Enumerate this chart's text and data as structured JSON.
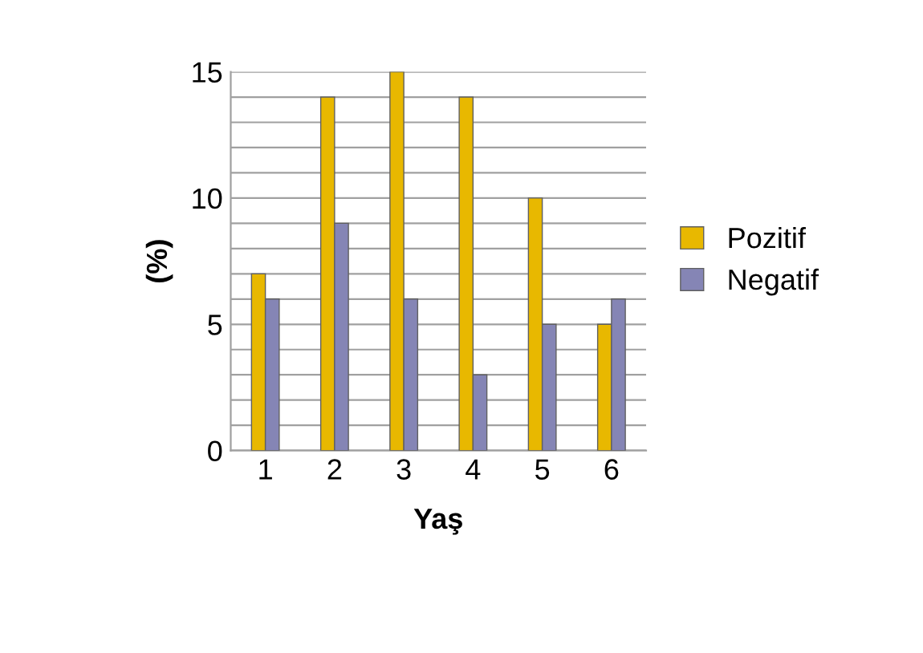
{
  "chart_data": {
    "type": "bar",
    "xlabel": "Yaş",
    "ylabel": "(%)",
    "categories": [
      "1",
      "2",
      "3",
      "4",
      "5",
      "6"
    ],
    "series": [
      {
        "name": "Pozitif",
        "color": "#e8b800",
        "values": [
          7,
          14,
          15,
          14,
          10,
          5
        ]
      },
      {
        "name": "Negatif",
        "color": "#8585b5",
        "values": [
          6,
          9,
          6,
          3,
          5,
          6
        ]
      }
    ],
    "ylim": [
      0,
      15
    ],
    "yticks": [
      0,
      {
        "value": 1,
        "label": null
      },
      {
        "value": 2,
        "label": null
      },
      {
        "value": 3,
        "label": null
      },
      {
        "value": 4,
        "label": null
      },
      5,
      {
        "value": 6,
        "label": null
      },
      {
        "value": 7,
        "label": null
      },
      {
        "value": 8,
        "label": null
      },
      {
        "value": 9,
        "label": null
      },
      10,
      {
        "value": 11,
        "label": null
      },
      {
        "value": 12,
        "label": null
      },
      {
        "value": 13,
        "label": null
      },
      {
        "value": 14,
        "label": null
      },
      15
    ],
    "grid": "y",
    "legend": "right"
  }
}
